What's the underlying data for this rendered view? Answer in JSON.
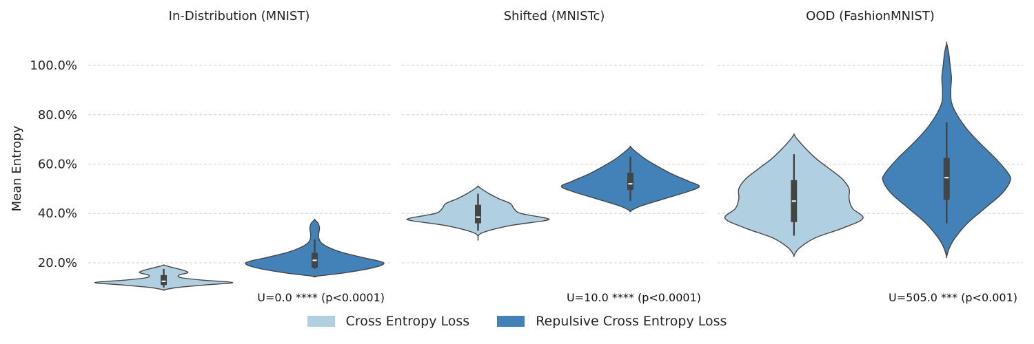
{
  "chart_data": {
    "type": "violin",
    "ylabel": "Mean Entropy",
    "ylim": [
      0.08,
      1.12
    ],
    "yticks": [
      0.2,
      0.4,
      0.6,
      0.8,
      1.0
    ],
    "ytick_labels": [
      "20.0%",
      "40.0%",
      "60.0%",
      "80.0%",
      "100.0%"
    ],
    "grid": true,
    "legend_placement": "bottom-center",
    "series": [
      {
        "name": "Cross Entropy Loss",
        "color": "#b0cfe1"
      },
      {
        "name": "Repulsive Cross Entropy Loss",
        "color": "#4282b9"
      }
    ],
    "panels": [
      {
        "title": "In-Distribution (MNIST)",
        "annotation": "U=0.0 **** (p<0.0001)",
        "violins": [
          {
            "series": "Cross Entropy Loss",
            "range": [
              0.09,
              0.19
            ],
            "q1": 0.11,
            "median": 0.125,
            "q3": 0.15,
            "whisker_low": 0.1,
            "whisker_high": 0.175,
            "profile": [
              [
                0.09,
                0.0
              ],
              [
                0.1,
                0.2
              ],
              [
                0.11,
                0.6
              ],
              [
                0.12,
                1.0
              ],
              [
                0.13,
                0.55
              ],
              [
                0.14,
                0.25
              ],
              [
                0.15,
                0.22
              ],
              [
                0.16,
                0.35
              ],
              [
                0.17,
                0.28
              ],
              [
                0.18,
                0.14
              ],
              [
                0.19,
                0.0
              ]
            ]
          },
          {
            "series": "Repulsive Cross Entropy Loss",
            "range": [
              0.145,
              0.375
            ],
            "q1": 0.18,
            "median": 0.21,
            "q3": 0.24,
            "whisker_low": 0.175,
            "whisker_high": 0.295,
            "profile": [
              [
                0.145,
                0.0
              ],
              [
                0.16,
                0.45
              ],
              [
                0.18,
                0.85
              ],
              [
                0.2,
                1.0
              ],
              [
                0.22,
                0.72
              ],
              [
                0.24,
                0.42
              ],
              [
                0.26,
                0.22
              ],
              [
                0.28,
                0.1
              ],
              [
                0.3,
                0.06
              ],
              [
                0.32,
                0.06
              ],
              [
                0.34,
                0.07
              ],
              [
                0.36,
                0.05
              ],
              [
                0.375,
                0.0
              ]
            ]
          }
        ]
      },
      {
        "title": "Shifted (MNISTc)",
        "annotation": "U=10.0 **** (p<0.0001)",
        "violins": [
          {
            "series": "Cross Entropy Loss",
            "range": [
              0.295,
              0.51
            ],
            "q1": 0.36,
            "median": 0.385,
            "q3": 0.435,
            "whisker_low": 0.33,
            "whisker_high": 0.48,
            "profile": [
              [
                0.295,
                0.0
              ],
              [
                0.32,
                0.05
              ],
              [
                0.35,
                0.45
              ],
              [
                0.37,
                0.95
              ],
              [
                0.38,
                1.0
              ],
              [
                0.4,
                0.62
              ],
              [
                0.42,
                0.52
              ],
              [
                0.44,
                0.47
              ],
              [
                0.46,
                0.3
              ],
              [
                0.48,
                0.16
              ],
              [
                0.5,
                0.05
              ],
              [
                0.51,
                0.0
              ]
            ]
          },
          {
            "series": "Repulsive Cross Entropy Loss",
            "range": [
              0.41,
              0.67
            ],
            "q1": 0.495,
            "median": 0.52,
            "q3": 0.565,
            "whisker_low": 0.45,
            "whisker_high": 0.63,
            "profile": [
              [
                0.41,
                0.0
              ],
              [
                0.43,
                0.15
              ],
              [
                0.46,
                0.5
              ],
              [
                0.49,
                0.85
              ],
              [
                0.51,
                1.0
              ],
              [
                0.53,
                0.85
              ],
              [
                0.56,
                0.6
              ],
              [
                0.59,
                0.4
              ],
              [
                0.62,
                0.22
              ],
              [
                0.65,
                0.08
              ],
              [
                0.67,
                0.0
              ]
            ]
          }
        ]
      },
      {
        "title": "OOD (FashionMNIST)",
        "annotation": "U=505.0 *** (p<0.001)",
        "violins": [
          {
            "series": "Cross Entropy Loss",
            "range": [
              0.23,
              0.72
            ],
            "q1": 0.365,
            "median": 0.45,
            "q3": 0.535,
            "whisker_low": 0.31,
            "whisker_high": 0.64,
            "profile": [
              [
                0.23,
                0.0
              ],
              [
                0.26,
                0.08
              ],
              [
                0.3,
                0.3
              ],
              [
                0.34,
                0.7
              ],
              [
                0.38,
                1.0
              ],
              [
                0.42,
                0.85
              ],
              [
                0.46,
                0.8
              ],
              [
                0.5,
                0.8
              ],
              [
                0.54,
                0.7
              ],
              [
                0.58,
                0.52
              ],
              [
                0.62,
                0.33
              ],
              [
                0.66,
                0.18
              ],
              [
                0.7,
                0.05
              ],
              [
                0.72,
                0.0
              ]
            ]
          },
          {
            "series": "Repulsive Cross Entropy Loss",
            "range": [
              0.225,
              1.09
            ],
            "q1": 0.455,
            "median": 0.545,
            "q3": 0.625,
            "whisker_low": 0.36,
            "whisker_high": 0.77,
            "profile": [
              [
                0.225,
                0.0
              ],
              [
                0.26,
                0.04
              ],
              [
                0.3,
                0.12
              ],
              [
                0.36,
                0.3
              ],
              [
                0.42,
                0.55
              ],
              [
                0.48,
                0.8
              ],
              [
                0.53,
                0.92
              ],
              [
                0.56,
                0.9
              ],
              [
                0.62,
                0.72
              ],
              [
                0.68,
                0.5
              ],
              [
                0.74,
                0.3
              ],
              [
                0.8,
                0.15
              ],
              [
                0.85,
                0.07
              ],
              [
                0.9,
                0.06
              ],
              [
                0.95,
                0.07
              ],
              [
                1.0,
                0.05
              ],
              [
                1.05,
                0.03
              ],
              [
                1.09,
                0.0
              ]
            ]
          }
        ]
      }
    ]
  }
}
